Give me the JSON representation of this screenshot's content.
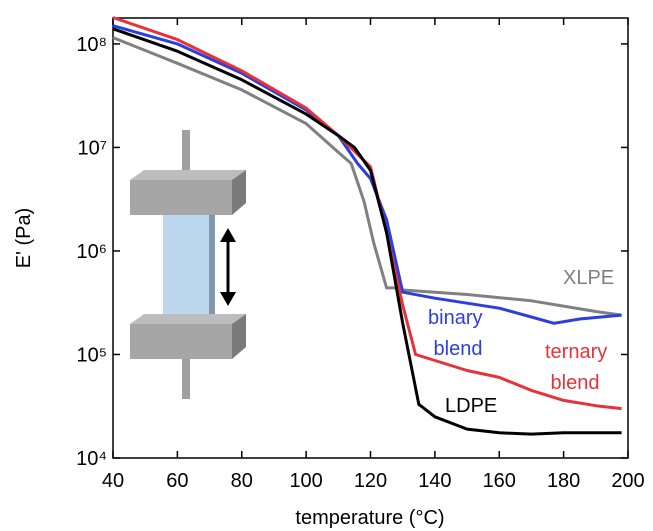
{
  "chart_data": {
    "type": "line",
    "x_label": "temperature (°C)",
    "y_label": "E' (Pa)",
    "log_y": true,
    "xlim": [
      40,
      200
    ],
    "xticks": [
      40,
      60,
      80,
      100,
      120,
      140,
      160,
      180,
      200
    ],
    "ylim": [
      10000,
      178000000
    ],
    "yticks": [
      {
        "value": 10000,
        "label": "10⁴"
      },
      {
        "value": 100000,
        "label": "10⁵"
      },
      {
        "value": 1000000,
        "label": "10⁶"
      },
      {
        "value": 10000000,
        "label": "10⁷"
      },
      {
        "value": 100000000,
        "label": "10⁸"
      }
    ],
    "series": [
      {
        "name": "XLPE",
        "color": "#808080",
        "x": [
          40,
          60,
          80,
          100,
          110,
          114,
          118,
          121,
          125,
          128,
          130,
          150,
          170,
          190,
          198
        ],
        "values": [
          115000000,
          65000000,
          36000000,
          17000000,
          9000000,
          7000000,
          3000000,
          1200000,
          440000,
          440000,
          420000,
          380000,
          330000,
          260000,
          240000
        ]
      },
      {
        "name": "binary blend",
        "color": "#2b3fe0",
        "x": [
          40,
          60,
          80,
          100,
          110,
          116,
          120,
          125,
          130,
          140,
          160,
          170,
          177,
          185,
          198
        ],
        "values": [
          150000000,
          100000000,
          52000000,
          23000000,
          13000000,
          7000000,
          5000000,
          2000000,
          400000,
          350000,
          280000,
          230000,
          200000,
          220000,
          240000
        ]
      },
      {
        "name": "ternary blend",
        "color": "#e8323a",
        "x": [
          40,
          60,
          80,
          100,
          110,
          120,
          125,
          130,
          134,
          150,
          160,
          170,
          180,
          190,
          198
        ],
        "values": [
          180000000,
          110000000,
          55000000,
          24000000,
          13000000,
          6500000,
          1500000,
          300000,
          100000,
          70000,
          60000,
          45000,
          36000,
          32000,
          30000
        ]
      },
      {
        "name": "LDPE",
        "color": "#000000",
        "x": [
          40,
          60,
          80,
          100,
          110,
          115,
          120,
          125,
          130,
          135,
          140,
          150,
          160,
          170,
          180,
          190,
          198
        ],
        "values": [
          140000000,
          85000000,
          45000000,
          21000000,
          13000000,
          10000000,
          6000000,
          1500000,
          200000,
          33000,
          25000,
          19000,
          17500,
          17000,
          17500,
          17500,
          17500
        ]
      }
    ]
  }
}
